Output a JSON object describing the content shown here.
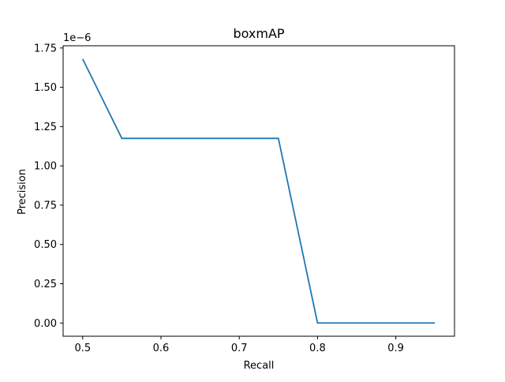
{
  "chart_data": {
    "type": "line",
    "title": "boxmAP",
    "xlabel": "Recall",
    "ylabel": "Precision",
    "y_offset_label": "1e−6",
    "xlim": [
      0.475,
      0.975
    ],
    "ylim": [
      -0.084,
      1.764
    ],
    "xticks": [
      0.5,
      0.6,
      0.7,
      0.8,
      0.9
    ],
    "xtick_labels": [
      "0.5",
      "0.6",
      "0.7",
      "0.8",
      "0.9"
    ],
    "yticks": [
      0.0,
      0.25,
      0.5,
      0.75,
      1.0,
      1.25,
      1.5,
      1.75
    ],
    "ytick_labels": [
      "0.00",
      "0.25",
      "0.50",
      "0.75",
      "1.00",
      "1.25",
      "1.50",
      "1.75"
    ],
    "grid": false,
    "series": [
      {
        "color": "#1f77b4",
        "x": [
          0.5,
          0.55,
          0.6,
          0.65,
          0.7,
          0.75,
          0.8,
          0.85,
          0.9,
          0.95
        ],
        "y": [
          1.68,
          1.175,
          1.175,
          1.175,
          1.175,
          1.175,
          0.0,
          0.0,
          0.0,
          0.0
        ]
      }
    ]
  }
}
